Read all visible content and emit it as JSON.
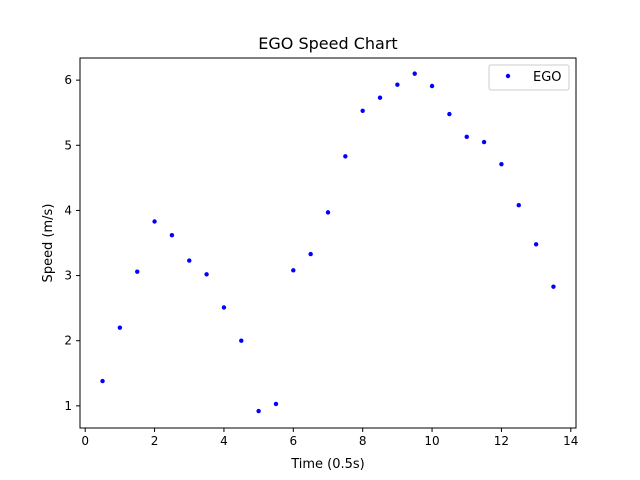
{
  "chart_data": {
    "type": "scatter",
    "title": "EGO Speed Chart",
    "xlabel": "Time (0.5s)",
    "ylabel": "Speed (m/s)",
    "xlim": [
      -0.15,
      14.15
    ],
    "ylim": [
      0.66,
      6.34
    ],
    "xticks": [
      0,
      2,
      4,
      6,
      8,
      10,
      12,
      14
    ],
    "xtick_labels": [
      "0",
      "2",
      "4",
      "6",
      "8",
      "10",
      "12",
      "14"
    ],
    "yticks": [
      1,
      2,
      3,
      4,
      5,
      6
    ],
    "ytick_labels": [
      "1",
      "2",
      "3",
      "4",
      "5",
      "6"
    ],
    "grid": false,
    "legend_position": "top-right",
    "series": [
      {
        "name": "EGO",
        "color": "#0000ff",
        "marker": "circle",
        "x": [
          0.5,
          1.0,
          1.5,
          2.0,
          2.5,
          3.0,
          3.5,
          4.0,
          4.5,
          5.0,
          5.5,
          6.0,
          6.5,
          7.0,
          7.5,
          8.0,
          8.5,
          9.0,
          9.5,
          10.0,
          10.5,
          11.0,
          11.5,
          12.0,
          12.5,
          13.0,
          13.5
        ],
        "y": [
          1.38,
          2.2,
          3.06,
          3.83,
          3.62,
          3.23,
          3.02,
          2.51,
          2.0,
          0.92,
          1.03,
          3.08,
          3.33,
          3.97,
          4.83,
          5.53,
          5.73,
          5.93,
          6.1,
          5.91,
          5.48,
          5.13,
          5.05,
          4.71,
          4.08,
          3.48,
          2.83
        ]
      }
    ]
  }
}
